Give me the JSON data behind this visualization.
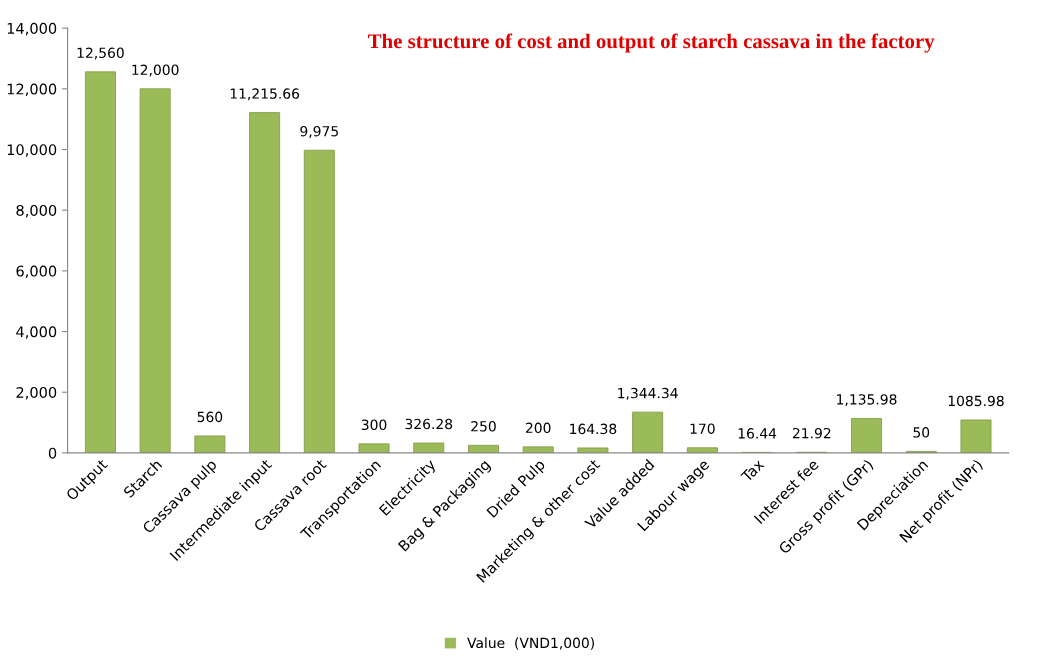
{
  "chart_data": {
    "type": "bar",
    "title": "The structure of cost and output of starch cassava in the factory",
    "categories": [
      "Output",
      "Starch",
      "Cassava pulp",
      "Intermediate input",
      "Cassava root",
      "Transportation",
      "Electricity",
      "Bag & Packaging",
      "Dried Pulp",
      "Marketing & other cost",
      "Value added",
      "Labour wage",
      "Tax",
      "Interest fee",
      "Gross profit (GPr)",
      "Depreciation",
      "Net profit (NPr)"
    ],
    "series": [
      {
        "name": "Value  (VND1,000)",
        "color": "#9bbb59",
        "values": [
          12560,
          12000,
          560,
          11215.66,
          9975,
          300,
          326.28,
          250,
          200,
          164.38,
          1344.34,
          170,
          16.44,
          21.92,
          1135.98,
          50,
          1085.98
        ],
        "value_labels": [
          "12,560",
          "12,000",
          "560",
          "11,215.66",
          "9,975",
          "300",
          "326.28",
          "250",
          "200",
          "164.38",
          "1,344.34",
          "170",
          "16.44",
          "21.92",
          "1,135.98",
          "50",
          "1085.98"
        ]
      }
    ],
    "ylim": [
      0,
      14000
    ],
    "yticks": [
      {
        "value": 0,
        "label": "0"
      },
      {
        "value": 2000,
        "label": "2,000"
      },
      {
        "value": 4000,
        "label": "4,000"
      },
      {
        "value": 6000,
        "label": "6,000"
      },
      {
        "value": 8000,
        "label": "8,000"
      },
      {
        "value": 10000,
        "label": "10,000"
      },
      {
        "value": 12000,
        "label": "12,000"
      },
      {
        "value": 14000,
        "label": "14,000"
      }
    ],
    "grid": false,
    "legend": "bottom"
  }
}
